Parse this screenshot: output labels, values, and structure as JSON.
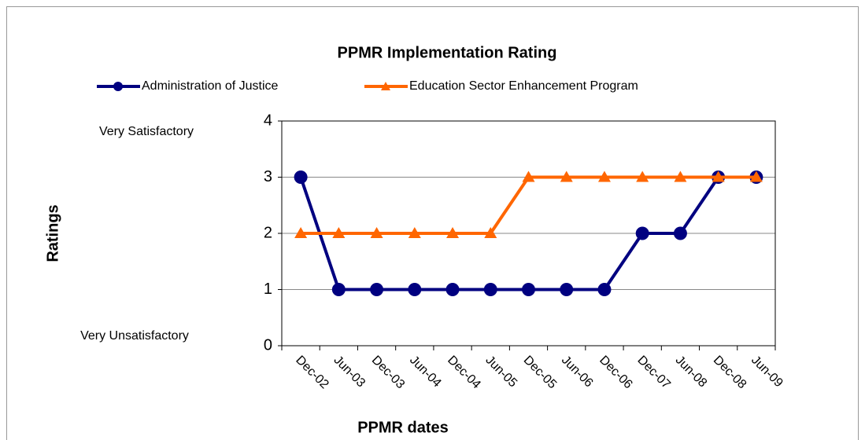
{
  "chart_data": {
    "type": "line",
    "title": "PPMR Implementation Rating",
    "x_label": "PPMR dates",
    "y_label": "Ratings",
    "annotations": [
      "Very Satisfactory",
      "Very Unsatisfactory"
    ],
    "categories": [
      "Dec-02",
      "Jun-03",
      "Dec-03",
      "Jun-04",
      "Dec-04",
      "Jun-05",
      "Dec-05",
      "Jun-06",
      "Dec-06",
      "Dec-07",
      "Jun-08",
      "Dec-08",
      "Jun-09"
    ],
    "series": [
      {
        "name": "Administration of Justice",
        "color": "#000080",
        "marker": "circle",
        "values": [
          3,
          1,
          1,
          1,
          1,
          1,
          1,
          1,
          1,
          2,
          2,
          3,
          3
        ]
      },
      {
        "name": "Education Sector Enhancement Program",
        "color": "#ff6600",
        "marker": "triangle",
        "values": [
          2,
          2,
          2,
          2,
          2,
          2,
          3,
          3,
          3,
          3,
          3,
          3,
          3
        ]
      }
    ],
    "ylim": [
      0,
      4
    ],
    "yticks": [
      0,
      1,
      2,
      3,
      4
    ],
    "grid": true,
    "legend": "top"
  }
}
